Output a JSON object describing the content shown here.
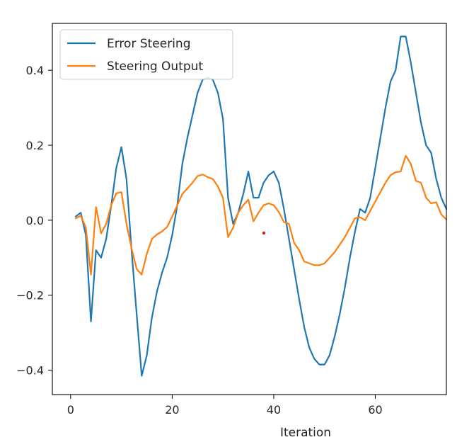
{
  "chart_data": {
    "type": "line",
    "title": "",
    "xlabel": "Iteration",
    "ylabel": "",
    "xlim": [
      -3.6,
      74
    ],
    "ylim": [
      -0.465,
      0.525
    ],
    "xticks": [
      0,
      20,
      40,
      60
    ],
    "xtick_labels": [
      "0",
      "20",
      "40",
      "60"
    ],
    "yticks": [
      -0.4,
      -0.2,
      0.0,
      0.2,
      0.4
    ],
    "ytick_labels": [
      "−0.4",
      "−0.2",
      "0.0",
      "0.2",
      "0.4"
    ],
    "grid": false,
    "legend_position": "top-left",
    "x": [
      1,
      2,
      3,
      4,
      5,
      6,
      7,
      8,
      9,
      10,
      11,
      12,
      13,
      14,
      15,
      16,
      17,
      18,
      19,
      20,
      21,
      22,
      23,
      24,
      25,
      26,
      27,
      28,
      29,
      30,
      31,
      32,
      33,
      34,
      35,
      36,
      37,
      38,
      39,
      40,
      41,
      42,
      43,
      44,
      45,
      46,
      47,
      48,
      49,
      50,
      51,
      52,
      53,
      54,
      55,
      56,
      57,
      58,
      59,
      60,
      61,
      62,
      63,
      64,
      65,
      66,
      67,
      68,
      69,
      70,
      71,
      72,
      73,
      74
    ],
    "series": [
      {
        "name": "Error Steering",
        "color": "#1f77b4",
        "values": [
          0.01,
          0.02,
          -0.04,
          -0.27,
          -0.08,
          -0.1,
          -0.05,
          0.04,
          0.14,
          0.195,
          0.11,
          -0.08,
          -0.25,
          -0.415,
          -0.36,
          -0.26,
          -0.19,
          -0.14,
          -0.1,
          -0.04,
          0.04,
          0.15,
          0.22,
          0.28,
          0.34,
          0.375,
          0.38,
          0.375,
          0.34,
          0.27,
          0.06,
          -0.01,
          0.02,
          0.07,
          0.13,
          0.06,
          0.06,
          0.1,
          0.12,
          0.13,
          0.1,
          0.03,
          -0.05,
          -0.13,
          -0.21,
          -0.285,
          -0.34,
          -0.37,
          -0.385,
          -0.385,
          -0.36,
          -0.31,
          -0.25,
          -0.18,
          -0.1,
          -0.03,
          0.03,
          0.02,
          0.06,
          0.14,
          0.22,
          0.3,
          0.37,
          0.4,
          0.49,
          0.49,
          0.42,
          0.34,
          0.26,
          0.2,
          0.18,
          0.11,
          0.06,
          0.03
        ]
      },
      {
        "name": "Steering Output",
        "color": "#ff7f0e",
        "values": [
          0.005,
          0.012,
          -0.02,
          -0.145,
          0.035,
          -0.035,
          -0.01,
          0.04,
          0.072,
          0.075,
          -0.01,
          -0.075,
          -0.13,
          -0.145,
          -0.09,
          -0.05,
          -0.038,
          -0.03,
          -0.018,
          0.01,
          0.04,
          0.07,
          0.085,
          0.1,
          0.118,
          0.122,
          0.115,
          0.11,
          0.09,
          0.06,
          -0.045,
          -0.02,
          0.02,
          0.04,
          0.055,
          -0.003,
          0.02,
          0.04,
          0.045,
          0.04,
          0.022,
          -0.005,
          -0.01,
          -0.06,
          -0.08,
          -0.11,
          -0.115,
          -0.12,
          -0.12,
          -0.115,
          -0.1,
          -0.085,
          -0.065,
          -0.045,
          -0.02,
          0.005,
          0.008,
          0.0,
          0.025,
          0.05,
          0.075,
          0.1,
          0.12,
          0.128,
          0.13,
          0.172,
          0.15,
          0.105,
          0.1,
          0.06,
          0.045,
          0.048,
          0.015,
          0.002
        ]
      }
    ]
  }
}
